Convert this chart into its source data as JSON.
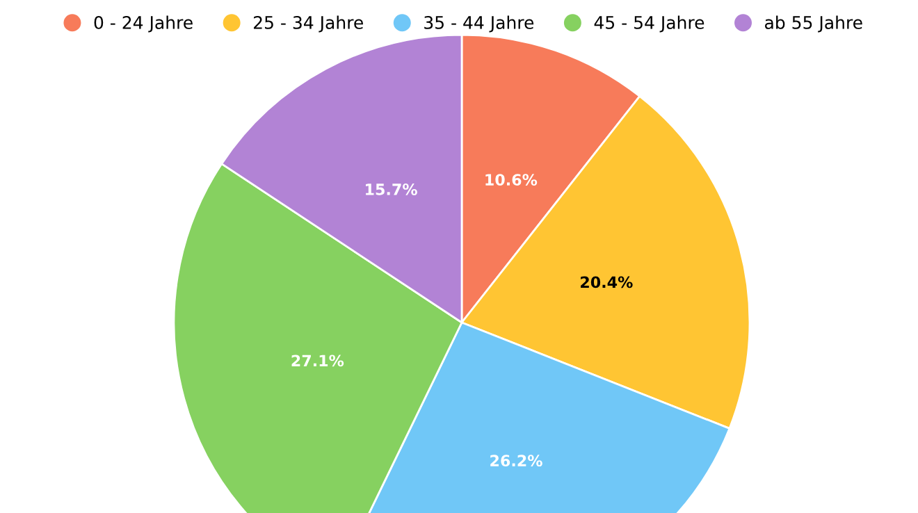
{
  "chart_data": {
    "type": "pie",
    "categories": [
      "0 - 24 Jahre",
      "25 - 34 Jahre",
      "35 - 44 Jahre",
      "45 - 54 Jahre",
      "ab 55 Jahre"
    ],
    "values": [
      10.6,
      20.4,
      26.2,
      27.1,
      15.7
    ],
    "colors": [
      "#f77b5a",
      "#ffc533",
      "#70c7f7",
      "#86d160",
      "#b283d5"
    ],
    "value_labels": [
      "10.6%",
      "20.4%",
      "26.2%",
      "27.1%",
      "15.7%"
    ],
    "legend": "top"
  }
}
